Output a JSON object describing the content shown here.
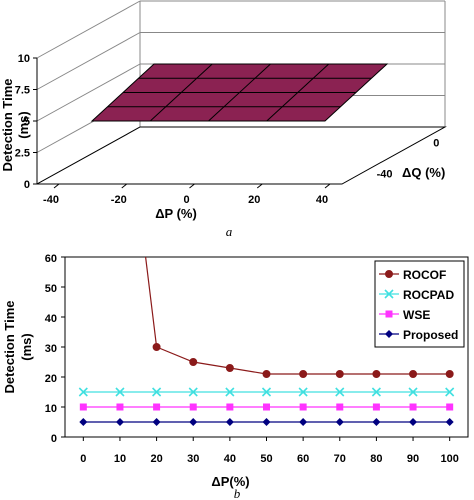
{
  "chart_data": [
    {
      "type": "surface3d",
      "panel_label": "a",
      "xlabel": "ΔP (%)",
      "ylabel": "ΔQ (%)",
      "zlabel": "Detection Time (ms)",
      "x_ticks": [
        "-40",
        "-20",
        "0",
        "20",
        "40"
      ],
      "y_ticks": [
        "0",
        "-40"
      ],
      "z_ticks": [
        "0",
        "2.5",
        "5",
        "7.5",
        "10"
      ],
      "zlim": [
        0,
        10
      ],
      "surface_value": 5,
      "surface_color": "#8b2252",
      "grid": true
    },
    {
      "type": "line",
      "panel_label": "b",
      "xlabel": "ΔP(%)",
      "ylabel": "Detection Time (ms)",
      "x": [
        0,
        10,
        20,
        30,
        40,
        50,
        60,
        70,
        80,
        90,
        100
      ],
      "x_ticks": [
        "0",
        "10",
        "20",
        "30",
        "40",
        "50",
        "60",
        "70",
        "80",
        "90",
        "100"
      ],
      "y_ticks": [
        "0",
        "10",
        "20",
        "30",
        "40",
        "50",
        "60"
      ],
      "xlim": [
        -5,
        105
      ],
      "ylim": [
        0,
        60
      ],
      "legend_position": "top-right",
      "grid": false,
      "series": [
        {
          "name": "ROCOF",
          "marker": "circle",
          "color": "#8b1a1a",
          "x": [
            17,
            20,
            30,
            40,
            50,
            60,
            70,
            80,
            90,
            100
          ],
          "values": [
            60,
            30,
            25,
            23,
            21,
            21,
            21,
            21,
            21,
            21
          ]
        },
        {
          "name": "ROCPAD",
          "marker": "x",
          "color": "#40e0e0",
          "x": [
            0,
            10,
            20,
            30,
            40,
            50,
            60,
            70,
            80,
            90,
            100
          ],
          "values": [
            15,
            15,
            15,
            15,
            15,
            15,
            15,
            15,
            15,
            15,
            15
          ]
        },
        {
          "name": "WSE",
          "marker": "square",
          "color": "#ff33ff",
          "x": [
            0,
            10,
            20,
            30,
            40,
            50,
            60,
            70,
            80,
            90,
            100
          ],
          "values": [
            10,
            10,
            10,
            10,
            10,
            10,
            10,
            10,
            10,
            10,
            10
          ]
        },
        {
          "name": "Proposed",
          "marker": "diamond",
          "color": "#000080",
          "x": [
            0,
            10,
            20,
            30,
            40,
            50,
            60,
            70,
            80,
            90,
            100
          ],
          "values": [
            5,
            5,
            5,
            5,
            5,
            5,
            5,
            5,
            5,
            5,
            5
          ]
        }
      ]
    }
  ]
}
